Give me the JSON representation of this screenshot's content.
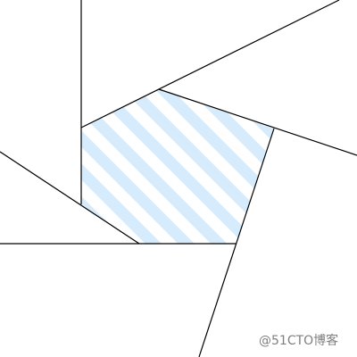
{
  "diagram": {
    "line_color": "#000000",
    "fill_stripe_color": "#d6ebfb",
    "fill_gap_color": "#ffffff",
    "background_color": "#ffffff"
  },
  "watermark": {
    "text": "@51CTO博客"
  }
}
